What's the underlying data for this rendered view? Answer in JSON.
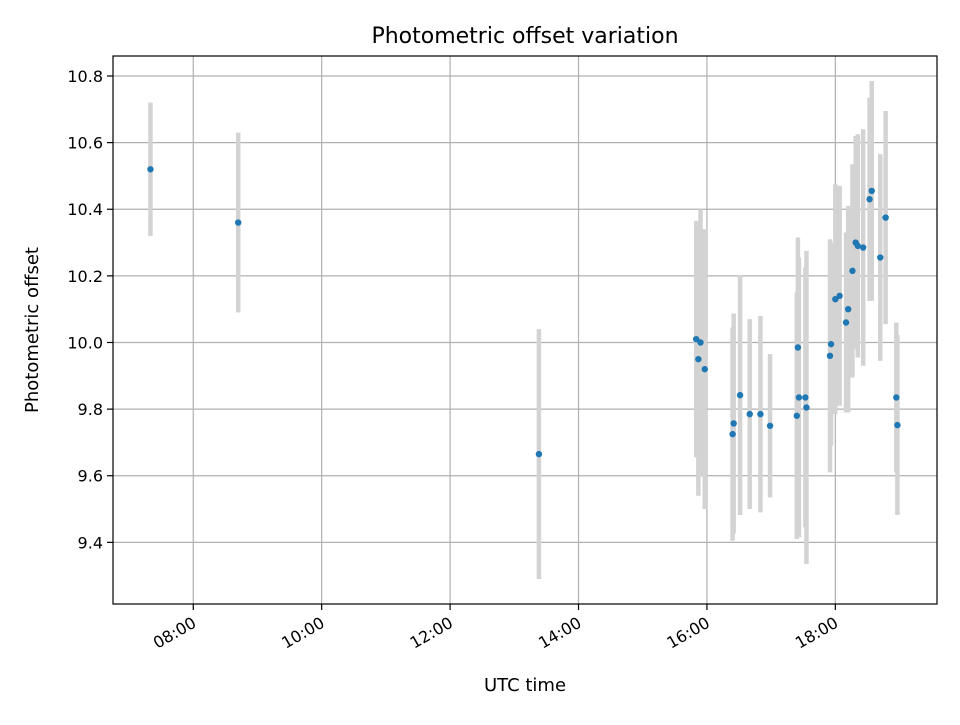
{
  "chart_data": {
    "type": "scatter",
    "title": "Photometric offset variation",
    "xlabel": "UTC time",
    "ylabel": "Photometric offset",
    "x_unit": "UTC time (HH:MM)",
    "xlim": [
      "06:45",
      "19:35"
    ],
    "ylim": [
      9.215,
      10.86
    ],
    "xticks": [
      "08:00",
      "10:00",
      "12:00",
      "14:00",
      "16:00",
      "18:00"
    ],
    "yticks": [
      9.4,
      9.6,
      9.8,
      10.0,
      10.2,
      10.4,
      10.6,
      10.8
    ],
    "ytick_labels": [
      "9.4",
      "9.6",
      "9.8",
      "10.0",
      "10.2",
      "10.4",
      "10.6",
      "10.8"
    ],
    "grid": true,
    "xtick_rotation_deg": 30,
    "point_color": "#1f77b4",
    "errorbar_color": "#d3d3d3",
    "series": [
      {
        "points": [
          {
            "x": "07:20",
            "y": 10.52,
            "err": 0.2
          },
          {
            "x": "08:42",
            "y": 10.36,
            "err": 0.27
          },
          {
            "x": "13:23",
            "y": 9.665,
            "err": 0.375
          },
          {
            "x": "15:50",
            "y": 10.01,
            "err": 0.355
          },
          {
            "x": "15:52",
            "y": 9.95,
            "err": 0.41
          },
          {
            "x": "15:54",
            "y": 10.0,
            "err": 0.4
          },
          {
            "x": "15:58",
            "y": 9.92,
            "err": 0.42
          },
          {
            "x": "16:24",
            "y": 9.725,
            "err": 0.32
          },
          {
            "x": "16:25",
            "y": 9.757,
            "err": 0.33
          },
          {
            "x": "16:31",
            "y": 9.842,
            "err": 0.36
          },
          {
            "x": "16:40",
            "y": 9.785,
            "err": 0.285
          },
          {
            "x": "16:50",
            "y": 9.785,
            "err": 0.295
          },
          {
            "x": "16:59",
            "y": 9.75,
            "err": 0.215
          },
          {
            "x": "17:24",
            "y": 9.78,
            "err": 0.37
          },
          {
            "x": "17:25",
            "y": 9.985,
            "err": 0.33
          },
          {
            "x": "17:26",
            "y": 9.835,
            "err": 0.42
          },
          {
            "x": "17:32",
            "y": 9.835,
            "err": 0.39
          },
          {
            "x": "17:33",
            "y": 9.805,
            "err": 0.47
          },
          {
            "x": "17:55",
            "y": 9.96,
            "err": 0.35
          },
          {
            "x": "17:56",
            "y": 9.995,
            "err": 0.305
          },
          {
            "x": "18:00",
            "y": 10.13,
            "err": 0.345
          },
          {
            "x": "18:04",
            "y": 10.14,
            "err": 0.33
          },
          {
            "x": "18:10",
            "y": 10.06,
            "err": 0.27
          },
          {
            "x": "18:12",
            "y": 10.1,
            "err": 0.31
          },
          {
            "x": "18:16",
            "y": 10.215,
            "err": 0.32
          },
          {
            "x": "18:19",
            "y": 10.3,
            "err": 0.32
          },
          {
            "x": "18:21",
            "y": 10.29,
            "err": 0.335
          },
          {
            "x": "18:26",
            "y": 10.285,
            "err": 0.355
          },
          {
            "x": "18:32",
            "y": 10.43,
            "err": 0.305
          },
          {
            "x": "18:34",
            "y": 10.455,
            "err": 0.33
          },
          {
            "x": "18:42",
            "y": 10.255,
            "err": 0.31
          },
          {
            "x": "18:47",
            "y": 10.375,
            "err": 0.32
          },
          {
            "x": "18:57",
            "y": 9.835,
            "err": 0.225
          },
          {
            "x": "18:58",
            "y": 9.752,
            "err": 0.27
          }
        ]
      }
    ]
  }
}
